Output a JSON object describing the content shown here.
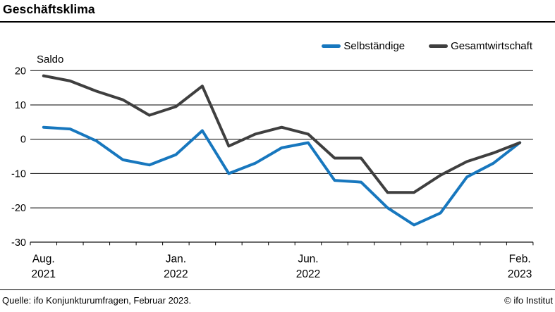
{
  "header": {
    "title": "Geschäftsklima"
  },
  "footer": {
    "source": "Quelle: ifo Konjunkturumfragen, Februar 2023.",
    "copyright": "© ifo Institut"
  },
  "chart_data": {
    "type": "line",
    "ylabel": "Saldo",
    "ylim": [
      -30,
      20
    ],
    "y_ticks": [
      20,
      10,
      0,
      -10,
      -20,
      -30
    ],
    "grid": true,
    "legend_position": "top-right",
    "months": [
      "Aug. 2021",
      "Sep. 2021",
      "Okt. 2021",
      "Nov. 2021",
      "Dez. 2021",
      "Jan. 2022",
      "Feb. 2022",
      "Mär. 2022",
      "Apr. 2022",
      "Mai 2022",
      "Jun. 2022",
      "Jul. 2022",
      "Aug. 2022",
      "Sep. 2022",
      "Okt. 2022",
      "Nov. 2022",
      "Dez. 2022",
      "Jan. 2023",
      "Feb. 2023"
    ],
    "x_tick_labels": [
      {
        "index": 0,
        "line1": "Aug.",
        "line2": "2021"
      },
      {
        "index": 5,
        "line1": "Jan.",
        "line2": "2022"
      },
      {
        "index": 10,
        "line1": "Jun.",
        "line2": "2022"
      },
      {
        "index": 18,
        "line1": "Feb.",
        "line2": "2023"
      }
    ],
    "series": [
      {
        "name": "Selbständige",
        "color": "#1777be",
        "values": [
          3.5,
          3,
          -0.5,
          -6,
          -7.5,
          -4.5,
          2.5,
          -10,
          -7,
          -2.5,
          -1,
          -12,
          -12.5,
          -20,
          -25,
          -21.5,
          -11,
          -7,
          -1
        ]
      },
      {
        "name": "Gesamtwirtschaft",
        "color": "#3f3f3f",
        "values": [
          18.5,
          17,
          14,
          11.5,
          7,
          9.5,
          15.5,
          -2,
          1.5,
          3.5,
          1.5,
          -5.5,
          -5.5,
          -15.5,
          -15.5,
          -10.5,
          -6.5,
          -4,
          -1
        ]
      }
    ]
  }
}
